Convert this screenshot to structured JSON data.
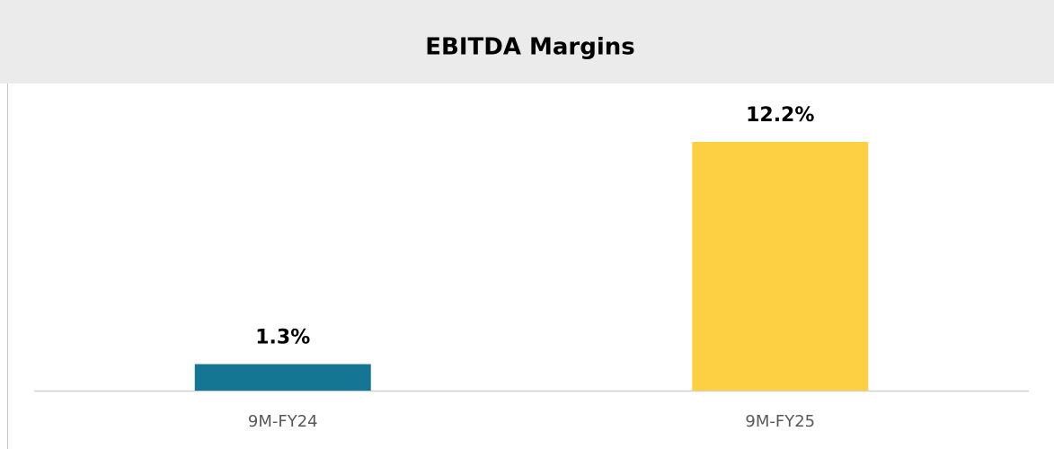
{
  "chart_data": {
    "type": "bar",
    "title": "EBITDA Margins",
    "categories": [
      "9M-FY24",
      "9M-FY25"
    ],
    "values": [
      1.3,
      12.2
    ],
    "value_labels": [
      "1.3%",
      "12.2%"
    ],
    "colors": [
      "#157694",
      "#fdd043"
    ]
  }
}
